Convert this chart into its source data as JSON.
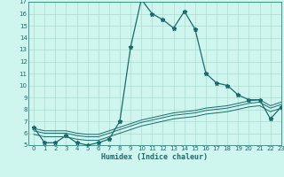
{
  "title": "",
  "xlabel": "Humidex (Indice chaleur)",
  "bg_color": "#cff5ef",
  "grid_color": "#aaddcc",
  "line_color": "#1a6b6b",
  "xlim": [
    -0.5,
    23
  ],
  "ylim": [
    5,
    17
  ],
  "xticks": [
    0,
    1,
    2,
    3,
    4,
    5,
    6,
    7,
    8,
    9,
    10,
    11,
    12,
    13,
    14,
    15,
    16,
    17,
    18,
    19,
    20,
    21,
    22,
    23
  ],
  "yticks": [
    5,
    6,
    7,
    8,
    9,
    10,
    11,
    12,
    13,
    14,
    15,
    16,
    17
  ],
  "main_line_x": [
    0,
    1,
    2,
    3,
    4,
    5,
    6,
    7,
    8,
    9,
    10,
    11,
    12,
    13,
    14,
    15,
    16,
    17,
    18,
    19,
    20,
    21,
    22,
    23
  ],
  "main_line_y": [
    6.5,
    5.2,
    5.2,
    5.8,
    5.2,
    5.0,
    5.2,
    5.5,
    7.0,
    13.2,
    17.2,
    16.0,
    15.5,
    14.8,
    16.2,
    14.7,
    11.0,
    10.2,
    10.0,
    9.2,
    8.8,
    8.8,
    7.2,
    8.2
  ],
  "line2_x": [
    0,
    1,
    2,
    3,
    4,
    5,
    6,
    7,
    8,
    9,
    10,
    11,
    12,
    13,
    14,
    15,
    16,
    17,
    18,
    19,
    20,
    21,
    22,
    23
  ],
  "line2_y": [
    6.2,
    6.0,
    6.0,
    6.0,
    5.8,
    5.7,
    5.7,
    6.0,
    6.3,
    6.6,
    6.9,
    7.1,
    7.3,
    7.5,
    7.6,
    7.7,
    7.9,
    8.0,
    8.1,
    8.3,
    8.5,
    8.6,
    8.1,
    8.4
  ],
  "line3_x": [
    0,
    1,
    2,
    3,
    4,
    5,
    6,
    7,
    8,
    9,
    10,
    11,
    12,
    13,
    14,
    15,
    16,
    17,
    18,
    19,
    20,
    21,
    22,
    23
  ],
  "line3_y": [
    6.4,
    6.2,
    6.2,
    6.2,
    6.0,
    5.9,
    5.9,
    6.2,
    6.5,
    6.8,
    7.1,
    7.3,
    7.5,
    7.7,
    7.8,
    7.9,
    8.1,
    8.2,
    8.3,
    8.5,
    8.7,
    8.8,
    8.3,
    8.6
  ],
  "line4_x": [
    0,
    1,
    2,
    3,
    4,
    5,
    6,
    7,
    8,
    9,
    10,
    11,
    12,
    13,
    14,
    15,
    16,
    17,
    18,
    19,
    20,
    21,
    22,
    23
  ],
  "line4_y": [
    5.9,
    5.7,
    5.7,
    5.7,
    5.5,
    5.4,
    5.4,
    5.7,
    6.0,
    6.3,
    6.6,
    6.8,
    7.0,
    7.2,
    7.3,
    7.4,
    7.6,
    7.7,
    7.8,
    8.0,
    8.2,
    8.3,
    7.8,
    8.1
  ]
}
